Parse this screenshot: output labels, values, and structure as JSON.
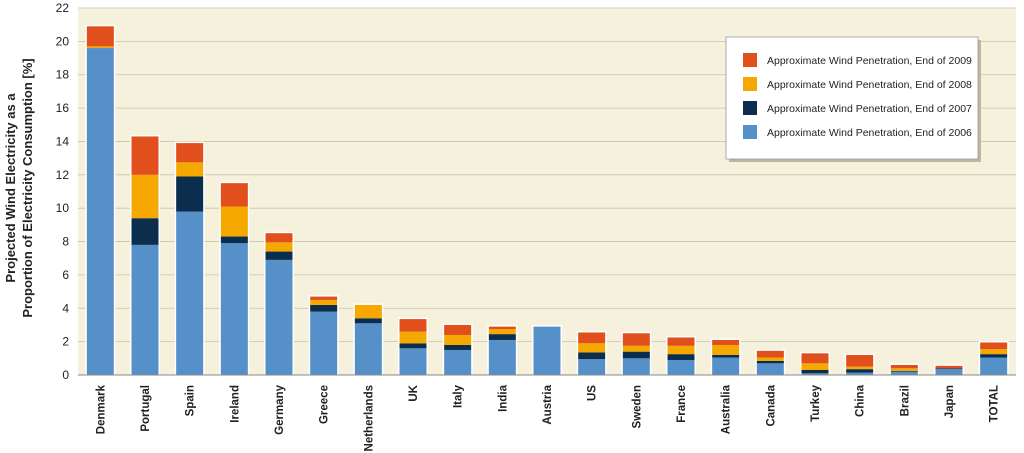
{
  "chart_data": {
    "type": "bar",
    "stacked": true,
    "categories": [
      "Denmark",
      "Portugal",
      "Spain",
      "Ireland",
      "Germany",
      "Greece",
      "Netherlands",
      "UK",
      "Italy",
      "India",
      "Austria",
      "US",
      "Sweden",
      "France",
      "Australia",
      "Canada",
      "Turkey",
      "China",
      "Brazil",
      "Japan",
      "TOTAL"
    ],
    "series": [
      {
        "name": "Approximate Wind Penetration, End of 2006",
        "color": "#5590c8",
        "values": [
          19.6,
          7.8,
          9.8,
          7.9,
          6.9,
          3.8,
          3.1,
          1.6,
          1.5,
          2.1,
          2.9,
          0.95,
          1.0,
          0.9,
          1.05,
          0.7,
          0.1,
          0.15,
          0.2,
          0.35,
          1.05
        ]
      },
      {
        "name": "Approximate Wind Penetration, End of 2007",
        "color": "#0b2d4e",
        "values": [
          0.0,
          1.6,
          2.1,
          0.4,
          0.5,
          0.4,
          0.3,
          0.3,
          0.3,
          0.35,
          0.0,
          0.4,
          0.4,
          0.35,
          0.15,
          0.15,
          0.2,
          0.2,
          0.05,
          0.05,
          0.2
        ]
      },
      {
        "name": "Approximate Wind Penetration, End of 2008",
        "color": "#f5a800",
        "values": [
          0.1,
          2.6,
          0.85,
          1.8,
          0.55,
          0.3,
          0.8,
          0.7,
          0.6,
          0.3,
          0.0,
          0.55,
          0.35,
          0.5,
          0.6,
          0.2,
          0.4,
          0.15,
          0.15,
          0.0,
          0.3
        ]
      },
      {
        "name": "Approximate Wind Penetration, End of 2009",
        "color": "#e04f1c",
        "values": [
          1.2,
          2.3,
          1.15,
          1.4,
          0.55,
          0.2,
          0.0,
          0.75,
          0.6,
          0.15,
          0.0,
          0.65,
          0.75,
          0.5,
          0.3,
          0.4,
          0.6,
          0.7,
          0.2,
          0.15,
          0.4
        ]
      }
    ],
    "ylabel_lines": [
      "Projected Wind Electricity as a",
      "Proportion of Electricity Consumption [%]"
    ],
    "ylim": [
      0,
      22
    ],
    "yticks": [
      "0",
      "2",
      "4",
      "6",
      "8",
      "10",
      "12",
      "14",
      "16",
      "18",
      "20",
      "22"
    ],
    "grid": true,
    "legend_position": "top-right",
    "legend_order": [
      3,
      2,
      1,
      0
    ],
    "colors": {
      "background": "#f5f1dd",
      "grid": "#c9c4a8"
    }
  }
}
